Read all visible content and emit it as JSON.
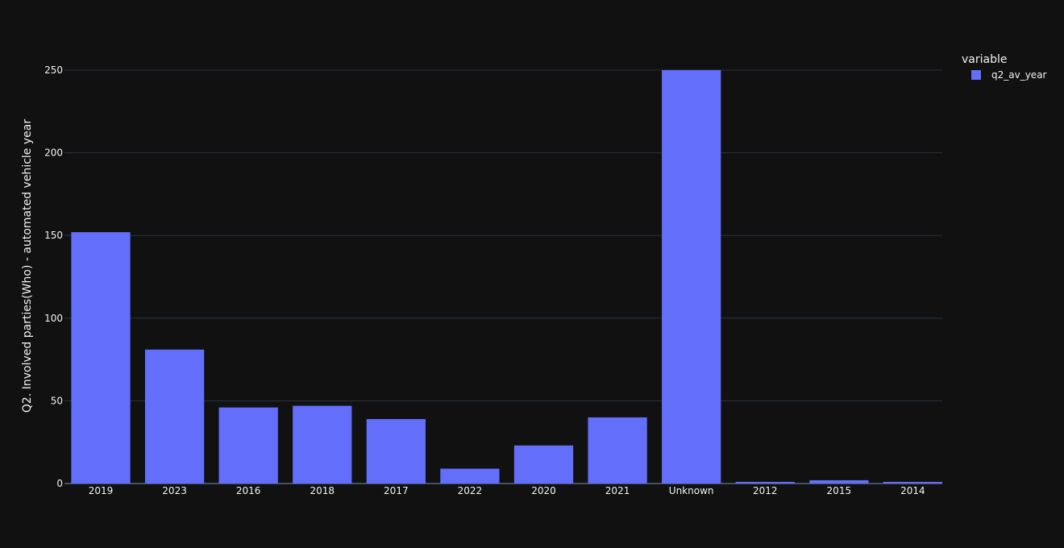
{
  "chart_data": {
    "type": "bar",
    "title": "",
    "xlabel": "",
    "ylabel": "Q2. Involved parties(Who) - automated vehicle year",
    "categories": [
      "2019",
      "2023",
      "2016",
      "2018",
      "2017",
      "2022",
      "2020",
      "2021",
      "Unknown",
      "2012",
      "2015",
      "2014"
    ],
    "series": [
      {
        "name": "q2_av_year",
        "color": "#636efa",
        "values": [
          152,
          81,
          46,
          47,
          39,
          9,
          23,
          40,
          250,
          1,
          2,
          1
        ]
      }
    ],
    "ylim": [
      0,
      263
    ],
    "yticks": [
      0,
      50,
      100,
      150,
      200,
      250
    ],
    "grid": true,
    "legend": {
      "title": "variable",
      "position": "top-right"
    }
  },
  "colors": {
    "background": "#111111",
    "grid": "#283442",
    "text": "#f2f2f2",
    "bar": "#636efa"
  }
}
